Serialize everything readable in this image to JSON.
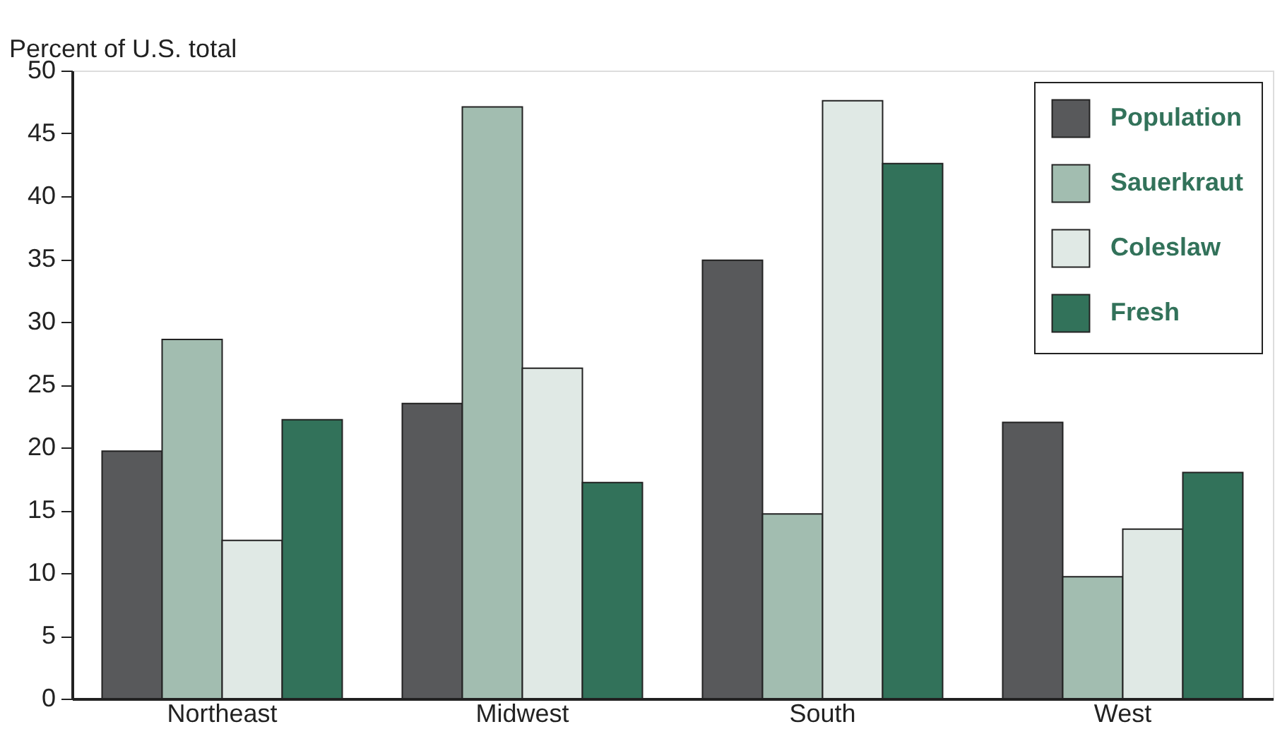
{
  "chart_data": {
    "type": "bar",
    "ylabel": "Percent of U.S. total",
    "categories": [
      "Northeast",
      "Midwest",
      "South",
      "West"
    ],
    "series": [
      {
        "name": "Population",
        "color": "#58595b",
        "values": [
          19.7,
          23.5,
          34.9,
          22.0
        ]
      },
      {
        "name": "Sauerkraut",
        "color": "#a2bdb0",
        "values": [
          28.6,
          47.1,
          14.7,
          9.7
        ]
      },
      {
        "name": "Coleslaw",
        "color": "#e0e9e5",
        "values": [
          12.6,
          26.3,
          47.6,
          13.5
        ]
      },
      {
        "name": "Fresh",
        "color": "#32725a",
        "values": [
          22.2,
          17.2,
          42.6,
          18.0
        ]
      }
    ],
    "ylim": [
      0,
      50
    ],
    "yticks": [
      0,
      5,
      10,
      15,
      20,
      25,
      30,
      35,
      40,
      45,
      50
    ],
    "grid": false,
    "legend": "top right"
  }
}
